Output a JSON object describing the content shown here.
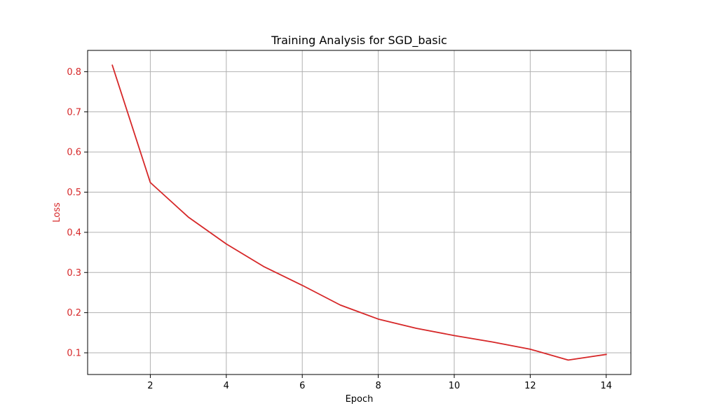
{
  "chart_data": {
    "type": "line",
    "title": "Training Analysis for SGD_basic",
    "xlabel": "Epoch",
    "ylabel": "Loss",
    "xlim": [
      0.35,
      14.65
    ],
    "ylim": [
      0.046,
      0.853
    ],
    "x_ticks": [
      2,
      4,
      6,
      8,
      10,
      12,
      14
    ],
    "y_ticks": [
      0.1,
      0.2,
      0.3,
      0.4,
      0.5,
      0.6,
      0.7,
      0.8
    ],
    "x_tick_labels": [
      "2",
      "4",
      "6",
      "8",
      "10",
      "12",
      "14"
    ],
    "y_tick_labels": [
      "0.1",
      "0.2",
      "0.3",
      "0.4",
      "0.5",
      "0.6",
      "0.7",
      "0.8"
    ],
    "grid": true,
    "series": [
      {
        "color": "#d62728",
        "x": [
          1,
          2,
          3,
          4,
          5,
          6,
          7,
          8,
          9,
          10,
          11,
          12,
          13,
          14
        ],
        "values": [
          0.816,
          0.524,
          0.438,
          0.371,
          0.314,
          0.268,
          0.219,
          0.184,
          0.161,
          0.143,
          0.127,
          0.109,
          0.082,
          0.096
        ]
      }
    ],
    "colors": {
      "line": "#d62728",
      "ylabel": "#d62728",
      "ytick": "#d62728",
      "xtick": "#000000",
      "grid": "#b0b0b0",
      "axes": "#000000"
    }
  }
}
